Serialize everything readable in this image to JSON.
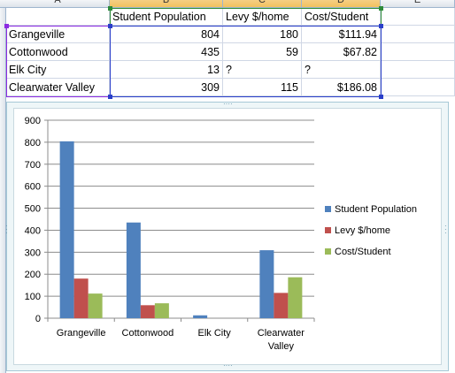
{
  "spreadsheet": {
    "column_headers": [
      "A",
      "B",
      "C",
      "D",
      "E"
    ],
    "header_row": [
      "",
      "Student Population",
      "Levy $/home",
      "Cost/Student"
    ],
    "rows": [
      [
        "Grangeville",
        "804",
        "180",
        "$111.94"
      ],
      [
        "Cottonwood",
        "435",
        "59",
        "$67.82"
      ],
      [
        "Elk City",
        "13",
        "?",
        "?"
      ],
      [
        "Clearwater Valley",
        "309",
        "115",
        "$186.08"
      ]
    ]
  },
  "colors": {
    "student_population": "#4f81bd",
    "levy": "#c0504d",
    "cost": "#9bbb59",
    "selection_purple": "#8c2be2",
    "selection_green": "#2e8b3a",
    "selection_blue": "#2a3fc9"
  },
  "chart_data": {
    "type": "bar",
    "categories": [
      "Grangeville",
      "Cottonwood",
      "Elk City",
      "Clearwater Valley"
    ],
    "category_labels": [
      [
        "Grangeville"
      ],
      [
        "Cottonwood"
      ],
      [
        "Elk City"
      ],
      [
        "Clearwater",
        "Valley"
      ]
    ],
    "series": [
      {
        "name": "Student Population",
        "values": [
          804,
          435,
          13,
          309
        ],
        "color": "#4f81bd"
      },
      {
        "name": "Levy $/home",
        "values": [
          180,
          59,
          null,
          115
        ],
        "color": "#c0504d"
      },
      {
        "name": "Cost/Student",
        "values": [
          111.94,
          67.82,
          null,
          186.08
        ],
        "color": "#9bbb59"
      }
    ],
    "ylim": [
      0,
      900
    ],
    "yticks": [
      "0",
      "100",
      "200",
      "300",
      "400",
      "500",
      "600",
      "700",
      "800",
      "900"
    ],
    "grid": true,
    "legend_position": "right",
    "title": "",
    "xlabel": "",
    "ylabel": ""
  }
}
